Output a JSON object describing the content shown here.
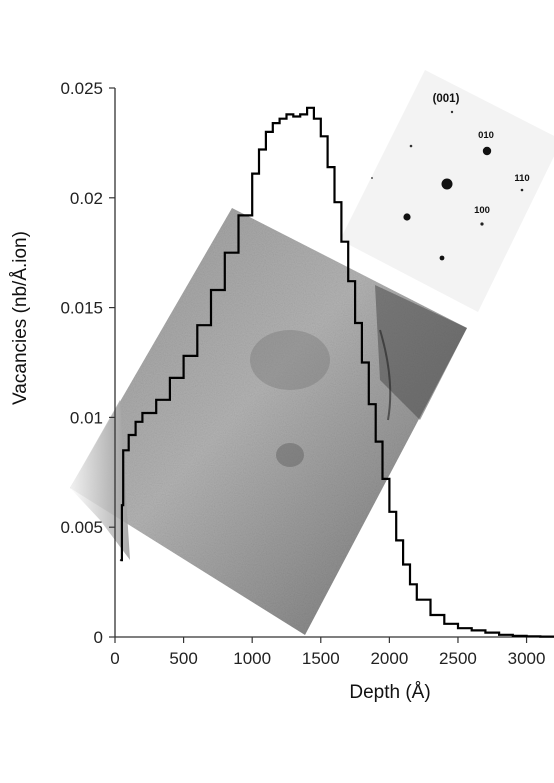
{
  "chart_data": {
    "type": "line",
    "xlabel": "Depth (Å)",
    "ylabel": "Vacancies (nb/Å.ion)",
    "xlim": [
      0,
      3200
    ],
    "ylim": [
      0,
      0.025
    ],
    "x_ticks": [
      "0",
      "500",
      "1000",
      "1500",
      "2000",
      "2500",
      "3000"
    ],
    "y_ticks": [
      "0",
      "0.005",
      "0.01",
      "0.015",
      "0.02",
      "0.025"
    ],
    "series": [
      {
        "x": [
          40,
          50,
          60,
          100,
          150,
          200,
          300,
          400,
          500,
          600,
          700,
          800,
          900,
          1000,
          1050,
          1100,
          1150,
          1200,
          1250,
          1300,
          1350,
          1400,
          1450,
          1500,
          1550,
          1600,
          1650,
          1700,
          1750,
          1800,
          1850,
          1900,
          1950,
          2000,
          2050,
          2100,
          2150,
          2200,
          2300,
          2400,
          2500,
          2600,
          2700,
          2800,
          2900,
          3000,
          3100,
          3200
        ],
        "y": [
          0.0035,
          0.006,
          0.0085,
          0.0092,
          0.0098,
          0.0102,
          0.0108,
          0.0118,
          0.0128,
          0.0142,
          0.0158,
          0.0175,
          0.0192,
          0.0211,
          0.0222,
          0.023,
          0.0234,
          0.0236,
          0.0238,
          0.0237,
          0.0238,
          0.0241,
          0.0236,
          0.0228,
          0.0214,
          0.0198,
          0.018,
          0.0162,
          0.0143,
          0.0125,
          0.0106,
          0.0089,
          0.0072,
          0.0057,
          0.0044,
          0.0033,
          0.0024,
          0.0017,
          0.001,
          0.0006,
          0.0004,
          0.0003,
          0.0002,
          0.0001,
          5e-05,
          3e-05,
          2e-05,
          1e-05
        ]
      }
    ]
  },
  "inset_diffraction": {
    "zone": "(001)",
    "spots": [
      "010",
      "110",
      "100"
    ]
  }
}
